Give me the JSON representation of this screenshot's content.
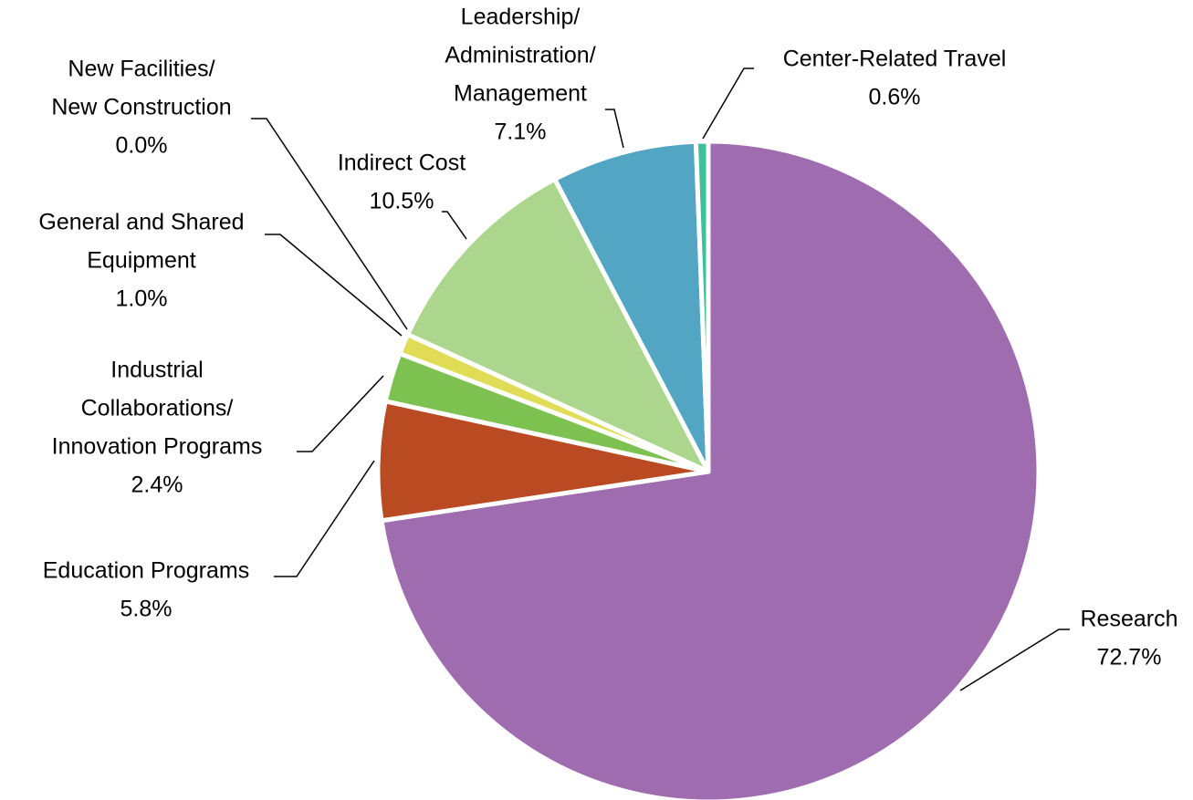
{
  "chart_data": {
    "type": "pie",
    "categories": [
      [
        "Research"
      ],
      [
        "Education Programs"
      ],
      [
        "Industrial",
        "Collaborations/",
        "Innovation Programs"
      ],
      [
        "General and Shared",
        "Equipment"
      ],
      [
        "New Facilities/",
        "New Construction"
      ],
      [
        "Indirect Cost"
      ],
      [
        "Leadership/",
        "Administration/",
        "Management"
      ],
      [
        "Center-Related Travel"
      ]
    ],
    "values": [
      72.7,
      5.8,
      2.4,
      1.0,
      0.0,
      10.5,
      7.1,
      0.6
    ],
    "value_labels": [
      "72.7%",
      "5.8%",
      "2.4%",
      "1.0%",
      "0.0%",
      "10.5%",
      "7.1%",
      "0.6%"
    ],
    "colors": [
      "#a06cb0",
      "#b94a22",
      "#7dc150",
      "#e0dc56",
      "#4a8c3c",
      "#acd68e",
      "#52a6c4",
      "#3fbf9c"
    ]
  }
}
